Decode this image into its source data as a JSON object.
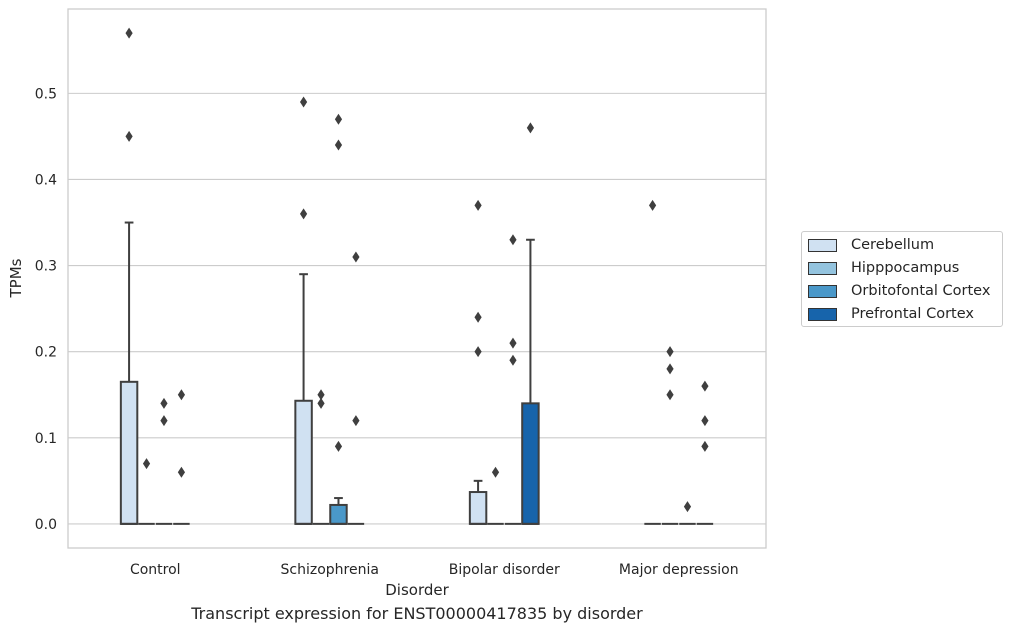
{
  "chart_data": {
    "type": "box",
    "title": "",
    "caption": "Transcript expression for ENST00000417835 by disorder",
    "xlabel": "Disorder",
    "ylabel": "TPMs",
    "ylim": [
      -0.028,
      0.598
    ],
    "yticks": [
      0.0,
      0.1,
      0.2,
      0.3,
      0.4,
      0.5
    ],
    "ytick_labels": [
      "0.0",
      "0.1",
      "0.2",
      "0.3",
      "0.4",
      "0.5"
    ],
    "grid": "horizontal",
    "legend_position": "right",
    "categories": [
      "Control",
      "Schizophrenia",
      "Bipolar disorder",
      "Major depression"
    ],
    "series": [
      {
        "name": "Cerebellum",
        "color": "#d0e1f2",
        "boxes": [
          {
            "q1": 0,
            "median": 0,
            "q3": 0.165,
            "whisker_low": 0,
            "whisker_high": 0.35,
            "outliers": [
              0.57,
              0.45
            ]
          },
          {
            "q1": 0,
            "median": 0,
            "q3": 0.143,
            "whisker_low": 0,
            "whisker_high": 0.29,
            "outliers": [
              0.49,
              0.36
            ]
          },
          {
            "q1": 0,
            "median": 0,
            "q3": 0.037,
            "whisker_low": 0,
            "whisker_high": 0.05,
            "outliers": [
              0.37,
              0.24,
              0.2
            ]
          },
          {
            "q1": 0,
            "median": 0,
            "q3": 0,
            "whisker_low": 0,
            "whisker_high": 0,
            "outliers": [
              0.37
            ]
          }
        ]
      },
      {
        "name": "Hipppocampus",
        "color": "#94c4df",
        "boxes": [
          {
            "q1": 0,
            "median": 0,
            "q3": 0,
            "whisker_low": 0,
            "whisker_high": 0,
            "outliers": [
              0.07
            ]
          },
          {
            "q1": 0,
            "median": 0,
            "q3": 0,
            "whisker_low": 0,
            "whisker_high": 0,
            "outliers": [
              0.15,
              0.14
            ]
          },
          {
            "q1": 0,
            "median": 0,
            "q3": 0,
            "whisker_low": 0,
            "whisker_high": 0,
            "outliers": [
              0.06
            ]
          },
          {
            "q1": 0,
            "median": 0,
            "q3": 0,
            "whisker_low": 0,
            "whisker_high": 0,
            "outliers": [
              0.2,
              0.18,
              0.15
            ]
          }
        ]
      },
      {
        "name": "Orbitofontal Cortex",
        "color": "#4a98c9",
        "boxes": [
          {
            "q1": 0,
            "median": 0,
            "q3": 0,
            "whisker_low": 0,
            "whisker_high": 0,
            "outliers": [
              0.14,
              0.12
            ]
          },
          {
            "q1": 0,
            "median": 0,
            "q3": 0.022,
            "whisker_low": 0,
            "whisker_high": 0.03,
            "outliers": [
              0.47,
              0.44,
              0.09
            ]
          },
          {
            "q1": 0,
            "median": 0,
            "q3": 0,
            "whisker_low": 0,
            "whisker_high": 0,
            "outliers": [
              0.33,
              0.21,
              0.19
            ]
          },
          {
            "q1": 0,
            "median": 0,
            "q3": 0,
            "whisker_low": 0,
            "whisker_high": 0,
            "outliers": [
              0.02
            ]
          }
        ]
      },
      {
        "name": "Prefrontal Cortex",
        "color": "#1764ab",
        "boxes": [
          {
            "q1": 0,
            "median": 0,
            "q3": 0,
            "whisker_low": 0,
            "whisker_high": 0,
            "outliers": [
              0.15,
              0.06
            ]
          },
          {
            "q1": 0,
            "median": 0,
            "q3": 0,
            "whisker_low": 0,
            "whisker_high": 0,
            "outliers": [
              0.31,
              0.12
            ]
          },
          {
            "q1": 0,
            "median": 0,
            "q3": 0.14,
            "whisker_low": 0,
            "whisker_high": 0.33,
            "outliers": [
              0.46
            ]
          },
          {
            "q1": 0,
            "median": 0,
            "q3": 0,
            "whisker_low": 0,
            "whisker_high": 0,
            "outliers": [
              0.16,
              0.12,
              0.09
            ]
          }
        ]
      }
    ]
  }
}
